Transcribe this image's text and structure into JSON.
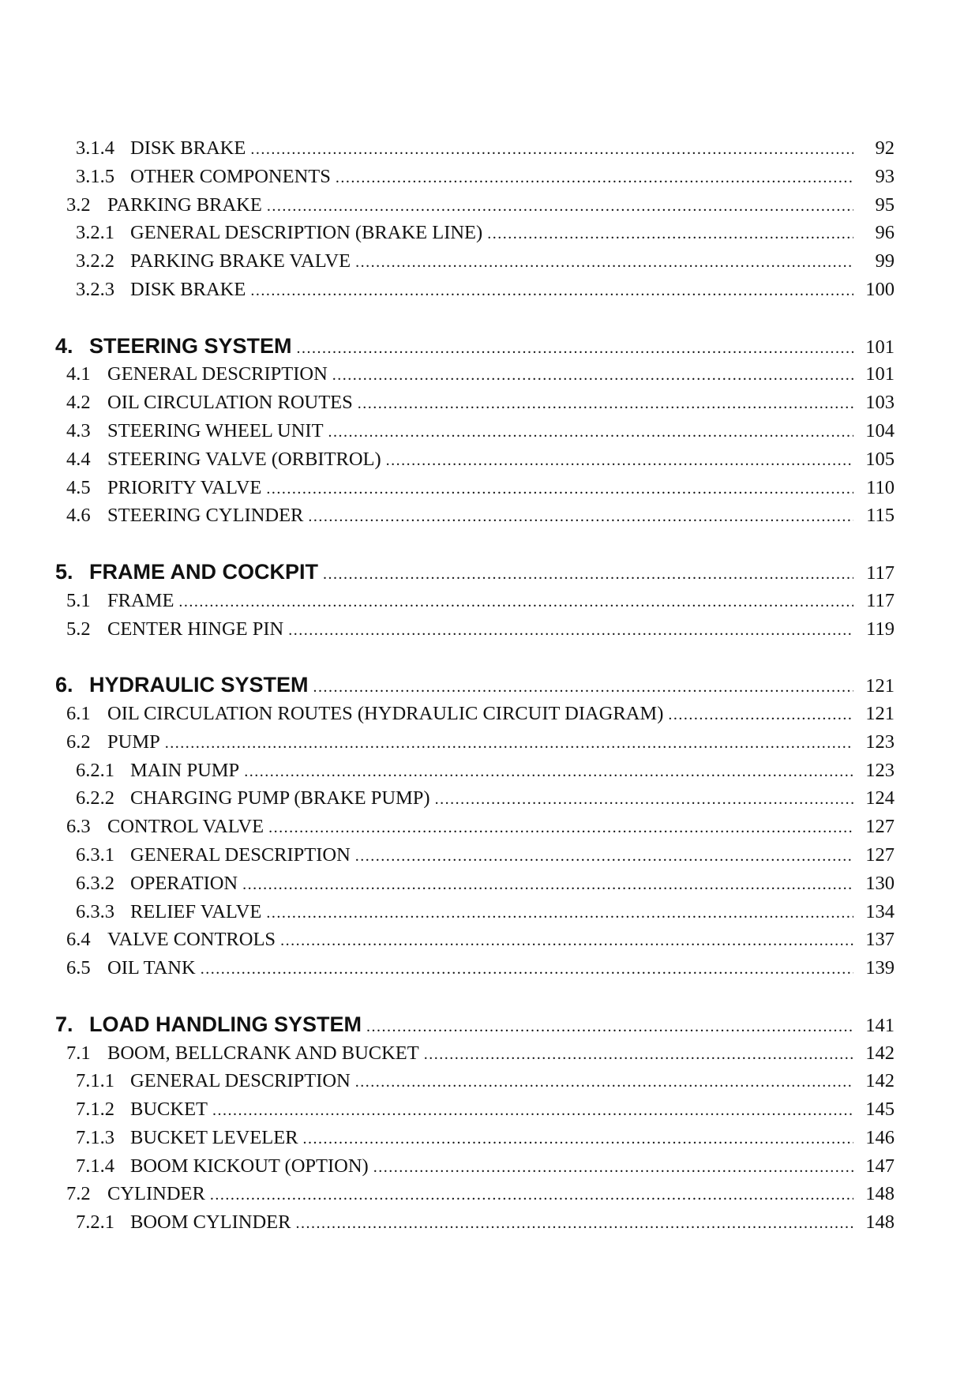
{
  "toc": [
    {
      "level": 2,
      "num": "3.1.4",
      "title": "DISK BRAKE",
      "page": "92"
    },
    {
      "level": 2,
      "num": "3.1.5",
      "title": "OTHER COMPONENTS",
      "page": "93"
    },
    {
      "level": 1,
      "num": "3.2",
      "title": "PARKING BRAKE",
      "page": "95"
    },
    {
      "level": 2,
      "num": "3.2.1",
      "title": "GENERAL DESCRIPTION (BRAKE LINE)",
      "page": "96"
    },
    {
      "level": 2,
      "num": "3.2.2",
      "title": "PARKING BRAKE VALVE",
      "page": "99"
    },
    {
      "level": 2,
      "num": "3.2.3",
      "title": "DISK BRAKE",
      "page": "100"
    },
    {
      "blank": true
    },
    {
      "level": 0,
      "num": "4.",
      "title": "STEERING SYSTEM",
      "page": "101"
    },
    {
      "level": 1,
      "num": "4.1",
      "title": "GENERAL DESCRIPTION",
      "page": "101"
    },
    {
      "level": 1,
      "num": "4.2",
      "title": "OIL CIRCULATION ROUTES",
      "page": "103"
    },
    {
      "level": 1,
      "num": "4.3",
      "title": "STEERING WHEEL UNIT",
      "page": "104"
    },
    {
      "level": 1,
      "num": "4.4",
      "title": "STEERING VALVE (ORBITROL)",
      "page": "105"
    },
    {
      "level": 1,
      "num": "4.5",
      "title": "PRIORITY VALVE",
      "page": "110"
    },
    {
      "level": 1,
      "num": "4.6",
      "title": "STEERING CYLINDER",
      "page": "115"
    },
    {
      "blank": true
    },
    {
      "level": 0,
      "num": "5.",
      "title": "FRAME AND COCKPIT",
      "page": "117"
    },
    {
      "level": 1,
      "num": "5.1",
      "title": "FRAME",
      "page": "117"
    },
    {
      "level": 1,
      "num": "5.2",
      "title": "CENTER HINGE PIN",
      "page": "119"
    },
    {
      "blank": true
    },
    {
      "level": 0,
      "num": "6.",
      "title": "HYDRAULIC SYSTEM",
      "page": "121"
    },
    {
      "level": 1,
      "num": "6.1",
      "title": "OIL CIRCULATION ROUTES (HYDRAULIC CIRCUIT DIAGRAM)",
      "page": "121"
    },
    {
      "level": 1,
      "num": "6.2",
      "title": "PUMP",
      "page": "123"
    },
    {
      "level": 2,
      "num": "6.2.1",
      "title": "MAIN PUMP",
      "page": "123"
    },
    {
      "level": 2,
      "num": "6.2.2",
      "title": "CHARGING PUMP (BRAKE PUMP)",
      "page": "124"
    },
    {
      "level": 1,
      "num": "6.3",
      "title": "CONTROL VALVE",
      "page": "127"
    },
    {
      "level": 2,
      "num": "6.3.1",
      "title": "GENERAL DESCRIPTION",
      "page": "127"
    },
    {
      "level": 2,
      "num": "6.3.2",
      "title": "OPERATION",
      "page": "130"
    },
    {
      "level": 2,
      "num": "6.3.3",
      "title": "RELIEF VALVE",
      "page": "134"
    },
    {
      "level": 1,
      "num": "6.4",
      "title": "VALVE CONTROLS",
      "page": "137"
    },
    {
      "level": 1,
      "num": "6.5",
      "title": "OIL TANK",
      "page": "139"
    },
    {
      "blank": true
    },
    {
      "level": 0,
      "num": "7.",
      "title": "LOAD HANDLING SYSTEM",
      "page": "141"
    },
    {
      "level": 1,
      "num": "7.1",
      "title": "BOOM, BELLCRANK AND BUCKET",
      "page": "142"
    },
    {
      "level": 2,
      "num": "7.1.1",
      "title": "GENERAL DESCRIPTION",
      "page": "142"
    },
    {
      "level": 2,
      "num": "7.1.2",
      "title": "BUCKET",
      "page": "145"
    },
    {
      "level": 2,
      "num": "7.1.3",
      "title": "BUCKET LEVELER",
      "page": "146"
    },
    {
      "level": 2,
      "num": "7.1.4",
      "title": "BOOM KICKOUT (OPTION)",
      "page": "147"
    },
    {
      "level": 1,
      "num": "7.2",
      "title": "CYLINDER",
      "page": "148"
    },
    {
      "level": 2,
      "num": "7.2.1",
      "title": "BOOM CYLINDER",
      "page": "148"
    }
  ]
}
